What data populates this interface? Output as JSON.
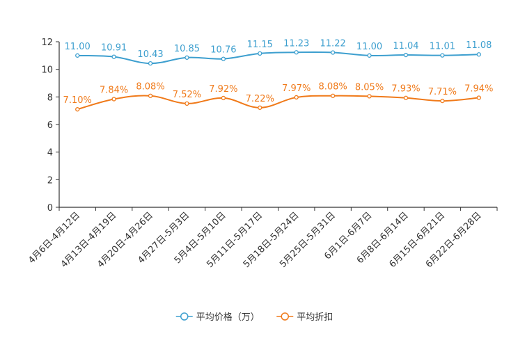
{
  "chart_data": {
    "type": "line",
    "title": "",
    "xlabel": "",
    "ylabel": "",
    "ylim": [
      0,
      12
    ],
    "yticks": [
      "0",
      "2",
      "4",
      "6",
      "8",
      "10",
      "12"
    ],
    "grid": false,
    "legend_position": "bottom-center",
    "categories": [
      "4月6日-4月12日",
      "4月13日-4月19日",
      "4月20日-4月26日",
      "4月27日-5月3日",
      "5月4日-5月10日",
      "5月11日-5月17日",
      "5月18日-5月24日",
      "5月25日-5月31日",
      "6月1日-6月7日",
      "6月8日-6月14日",
      "6月15日-6月21日",
      "6月22日-6月28日"
    ],
    "series": [
      {
        "name": "平均价格（万）",
        "color": "#3d9fcf",
        "values": [
          11.0,
          10.91,
          10.43,
          10.85,
          10.76,
          11.15,
          11.23,
          11.22,
          11.0,
          11.04,
          11.01,
          11.08
        ],
        "labels": [
          "11.00",
          "10.91",
          "10.43",
          "10.85",
          "10.76",
          "11.15",
          "11.23",
          "11.22",
          "11.00",
          "11.04",
          "11.01",
          "11.08"
        ]
      },
      {
        "name": "平均折扣",
        "color": "#f07a1a",
        "values": [
          7.1,
          7.84,
          8.08,
          7.52,
          7.92,
          7.22,
          7.97,
          8.08,
          8.05,
          7.93,
          7.71,
          7.94
        ],
        "labels": [
          "7.10%",
          "7.84%",
          "8.08%",
          "7.52%",
          "7.92%",
          "7.22%",
          "7.97%",
          "8.08%",
          "8.05%",
          "7.93%",
          "7.71%",
          "7.94%"
        ]
      }
    ]
  }
}
